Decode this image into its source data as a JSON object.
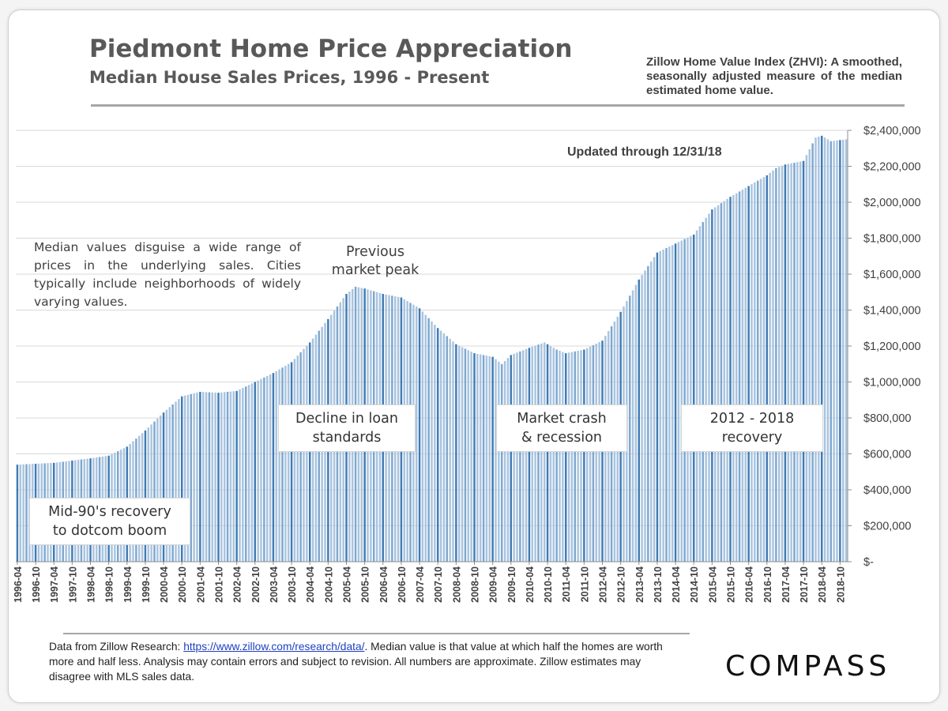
{
  "header": {
    "title": "Piedmont Home Price Appreciation",
    "subtitle": "Median House Sales Prices, 1996 - Present",
    "zhvi_note": "Zillow Home Value Index (ZHVI): A smoothed, seasonally adjusted measure of the median estimated home value."
  },
  "annotations": {
    "updated": "Updated through 12/31/18",
    "median_note": "Median values disguise a wide range of prices in the underlying sales. Cities typically include neighborhoods of widely varying values.",
    "peak_line1": "Previous",
    "peak_line2": "market peak",
    "box_dotcom_line1": "Mid-90's recovery",
    "box_dotcom_line2": "to dotcom boom",
    "box_loan_line1": "Decline in loan",
    "box_loan_line2": "standards",
    "box_crash_line1": "Market crash",
    "box_crash_line2": "& recession",
    "box_recovery_line1": "2012 - 2018",
    "box_recovery_line2": "recovery"
  },
  "footer": {
    "text_before": "Data from Zillow Research: ",
    "link": "https://www.zillow.com/research/data/",
    "text_after": ". Median value is that value at which half the homes are worth more and half less. Analysis may contain errors and subject to revision. All numbers are approximate. Zillow estimates may disagree with MLS sales data."
  },
  "logo": {
    "text": "COMPASS"
  },
  "colors": {
    "bar_light": "#a9c4df",
    "bar_dark": "#3f7bb5",
    "bar_mid": "#7ea7cf",
    "grid": "#d9d9d9",
    "axis_text": "#404040"
  },
  "chart_data": {
    "type": "bar",
    "title": "Piedmont Home Price Appreciation",
    "subtitle": "Median House Sales Prices, 1996 - Present",
    "frequency": "monthly",
    "start": "1996-04",
    "end": "2018-12",
    "ylim": [
      0,
      2400000
    ],
    "ytick_values": [
      0,
      200000,
      400000,
      600000,
      800000,
      1000000,
      1200000,
      1400000,
      1600000,
      1800000,
      2000000,
      2200000,
      2400000
    ],
    "ytick_labels": [
      "$-",
      "$200,000",
      "$400,000",
      "$600,000",
      "$800,000",
      "$1,000,000",
      "$1,200,000",
      "$1,400,000",
      "$1,600,000",
      "$1,800,000",
      "$2,000,000",
      "$2,200,000",
      "$2,400,000"
    ],
    "xtick_labels": [
      "1996-04",
      "1996-10",
      "1997-04",
      "1997-10",
      "1998-04",
      "1998-10",
      "1999-04",
      "1999-10",
      "2000-04",
      "2000-10",
      "2001-04",
      "2001-10",
      "2002-04",
      "2002-10",
      "2003-04",
      "2003-10",
      "2004-04",
      "2004-10",
      "2005-04",
      "2005-10",
      "2006-04",
      "2006-10",
      "2007-04",
      "2007-10",
      "2008-04",
      "2008-10",
      "2009-04",
      "2009-10",
      "2010-04",
      "2010-10",
      "2011-04",
      "2011-10",
      "2012-04",
      "2012-10",
      "2013-04",
      "2013-10",
      "2014-04",
      "2014-10",
      "2015-04",
      "2015-10",
      "2016-04",
      "2016-10",
      "2017-04",
      "2017-10",
      "2018-04",
      "2018-10"
    ],
    "grid": true,
    "anchors": [
      [
        "1996-04",
        540000
      ],
      [
        "1997-04",
        550000
      ],
      [
        "1998-04",
        575000
      ],
      [
        "1998-10",
        590000
      ],
      [
        "1999-04",
        640000
      ],
      [
        "1999-10",
        730000
      ],
      [
        "2000-04",
        830000
      ],
      [
        "2000-10",
        920000
      ],
      [
        "2001-04",
        945000
      ],
      [
        "2001-10",
        940000
      ],
      [
        "2002-04",
        950000
      ],
      [
        "2002-10",
        1000000
      ],
      [
        "2003-04",
        1050000
      ],
      [
        "2003-10",
        1110000
      ],
      [
        "2004-04",
        1220000
      ],
      [
        "2004-10",
        1350000
      ],
      [
        "2005-04",
        1490000
      ],
      [
        "2005-07",
        1530000
      ],
      [
        "2005-10",
        1520000
      ],
      [
        "2006-04",
        1490000
      ],
      [
        "2006-10",
        1470000
      ],
      [
        "2007-04",
        1410000
      ],
      [
        "2007-10",
        1300000
      ],
      [
        "2008-04",
        1210000
      ],
      [
        "2008-10",
        1160000
      ],
      [
        "2009-04",
        1140000
      ],
      [
        "2009-07",
        1100000
      ],
      [
        "2009-10",
        1150000
      ],
      [
        "2010-04",
        1190000
      ],
      [
        "2010-09",
        1220000
      ],
      [
        "2011-01",
        1180000
      ],
      [
        "2011-04",
        1160000
      ],
      [
        "2011-10",
        1180000
      ],
      [
        "2012-04",
        1230000
      ],
      [
        "2012-10",
        1390000
      ],
      [
        "2013-04",
        1570000
      ],
      [
        "2013-10",
        1720000
      ],
      [
        "2014-04",
        1770000
      ],
      [
        "2014-10",
        1820000
      ],
      [
        "2015-04",
        1960000
      ],
      [
        "2015-10",
        2030000
      ],
      [
        "2016-04",
        2090000
      ],
      [
        "2016-10",
        2150000
      ],
      [
        "2017-01",
        2190000
      ],
      [
        "2017-04",
        2210000
      ],
      [
        "2017-10",
        2230000
      ],
      [
        "2018-02",
        2360000
      ],
      [
        "2018-04",
        2370000
      ],
      [
        "2018-07",
        2340000
      ],
      [
        "2018-12",
        2350000
      ]
    ]
  }
}
